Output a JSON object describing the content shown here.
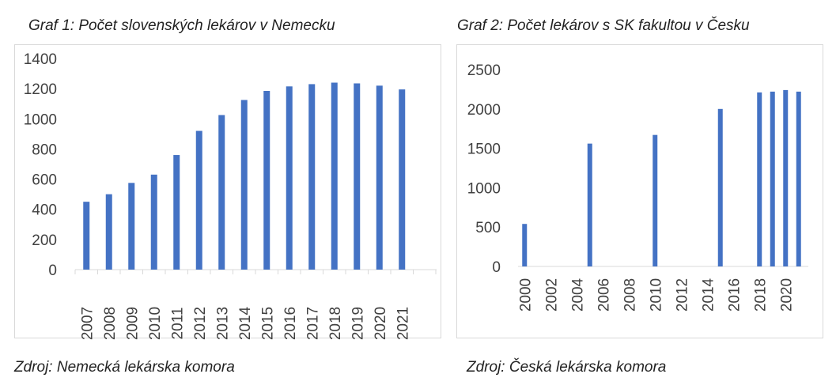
{
  "chart_data": [
    {
      "type": "bar",
      "title": "Graf 1: Počet slovenských lekárov v Nemecku",
      "source": "Zdroj: Nemecká lekárska komora",
      "categories": [
        "2007",
        "2008",
        "2009",
        "2010",
        "2011",
        "2012",
        "2013",
        "2014",
        "2015",
        "2016",
        "2017",
        "2018",
        "2019",
        "2020",
        "2021"
      ],
      "values": [
        450,
        500,
        575,
        630,
        760,
        920,
        1025,
        1125,
        1185,
        1215,
        1230,
        1240,
        1235,
        1220,
        1195
      ],
      "ylim": [
        0,
        1400
      ],
      "yticks": [
        "0",
        "200",
        "400",
        "600",
        "800",
        "1000",
        "1200",
        "1400"
      ],
      "bar_color": "#4472C4",
      "grid": false
    },
    {
      "type": "bar",
      "title": "Graf 2: Počet lekárov s SK fakultou v Česku",
      "source": "Zdroj: Česká lekárska komora",
      "x": [
        2000,
        2005,
        2010,
        2015,
        2018,
        2019,
        2020,
        2021
      ],
      "values": [
        540,
        1560,
        1670,
        2000,
        2210,
        2220,
        2240,
        2220
      ],
      "xlim": [
        2000,
        2021
      ],
      "xticks": [
        "2000",
        "2002",
        "2004",
        "2006",
        "2008",
        "2010",
        "2012",
        "2014",
        "2016",
        "2018",
        "2020"
      ],
      "ylim": [
        0,
        2500
      ],
      "yticks": [
        "0",
        "500",
        "1000",
        "1500",
        "2000",
        "2500"
      ],
      "bar_color": "#4472C4",
      "grid": false
    }
  ]
}
